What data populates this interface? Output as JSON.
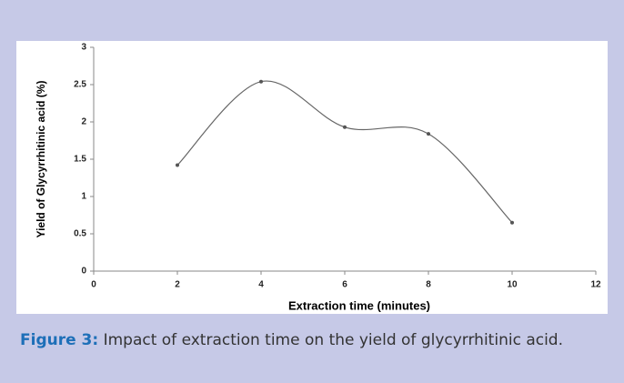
{
  "chart_data": {
    "type": "line",
    "x_label": "Extraction time (minutes)",
    "y_label": "Yield of Glycyrrhitinic acid (%)",
    "x": [
      2,
      4,
      6,
      8,
      10
    ],
    "values": [
      1.42,
      2.54,
      1.93,
      1.84,
      0.65
    ],
    "color": "#666666",
    "xlim": [
      0,
      12
    ],
    "xticks": [
      0,
      2,
      4,
      6,
      8,
      10,
      12
    ],
    "ylim": [
      0,
      3
    ],
    "yticks": [
      0,
      0.5,
      1,
      1.5,
      2,
      2.5,
      3
    ],
    "smooth": true,
    "caption_label": "Figure 3:",
    "caption": "Impact of extraction time on the yield of glycyrrhitinic acid."
  }
}
